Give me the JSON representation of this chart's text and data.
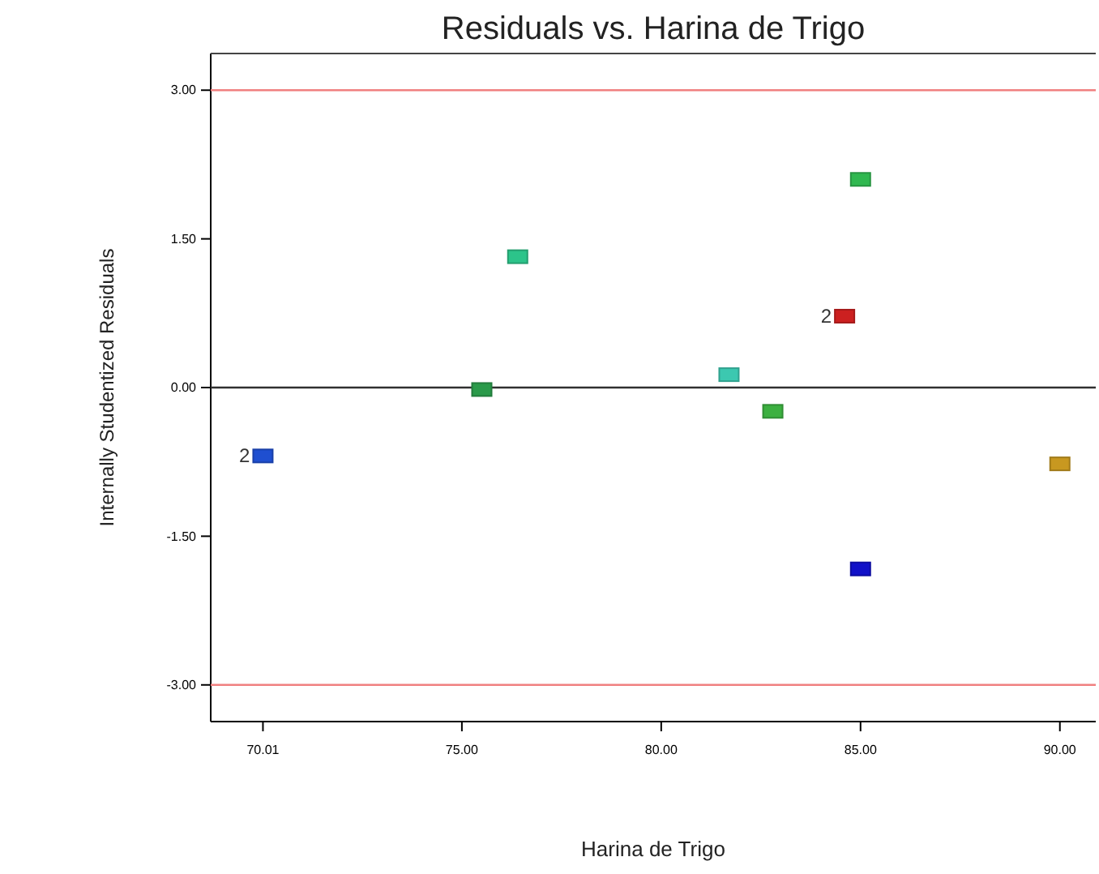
{
  "chart_data": {
    "type": "scatter",
    "title": "Residuals vs. Harina de Trigo",
    "xlabel": "Harina de Trigo",
    "ylabel": "Internally Studentized Residuals",
    "xlim": [
      68.7,
      90.9
    ],
    "xticks": [
      {
        "value": 70.01,
        "label": "70.01"
      },
      {
        "value": 75,
        "label": "75.00"
      },
      {
        "value": 80,
        "label": "80.00"
      },
      {
        "value": 85,
        "label": "85.00"
      },
      {
        "value": 90,
        "label": "90.00"
      }
    ],
    "ylim": [
      -3.37,
      3.37
    ],
    "yticks": [
      {
        "value": -3,
        "label": "-3.00"
      },
      {
        "value": -1.5,
        "label": "-1.50"
      },
      {
        "value": 0,
        "label": "0.00"
      },
      {
        "value": 1.5,
        "label": "1.50"
      },
      {
        "value": 3,
        "label": "3.00"
      }
    ],
    "x": [
      70.01,
      75.5,
      76.4,
      81.7,
      82.8,
      84.6,
      85.0,
      85.0,
      90.0
    ],
    "values": [
      -0.69,
      -0.02,
      1.32,
      0.13,
      -0.24,
      0.72,
      2.1,
      -1.83,
      -0.77
    ],
    "colors": [
      "#1f4fd0",
      "#2a9a4a",
      "#2cc48a",
      "#3cc8b0",
      "#3cb040",
      "#cc2020",
      "#30b850",
      "#1010c8",
      "#c89820"
    ],
    "marker": "square",
    "annotations": [
      {
        "text": "2",
        "x": 70.01,
        "y": -0.69
      },
      {
        "text": "2",
        "x": 84.6,
        "y": 0.72
      }
    ],
    "ref_lines": [
      {
        "axis": "y",
        "value": 3,
        "color": "#f08080"
      },
      {
        "axis": "y",
        "value": -3,
        "color": "#f08080"
      },
      {
        "axis": "y",
        "value": 0,
        "color": "#303030"
      }
    ],
    "grid": false
  }
}
